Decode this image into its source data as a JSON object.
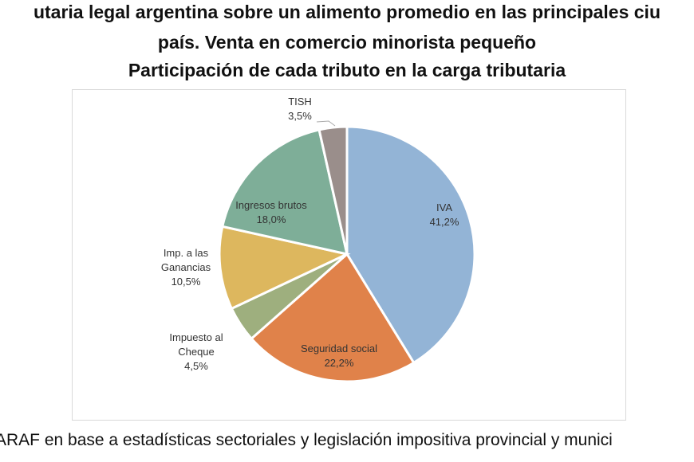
{
  "chart_data": {
    "type": "pie",
    "title": [
      "utaria legal argentina sobre un alimento promedio en las principales ciu",
      "país. Venta en comercio minorista pequeño",
      "Participación de cada tributo en la carga tributaria"
    ],
    "start": "12 o'clock, clockwise",
    "slices": [
      {
        "label": "IVA",
        "value": 41.2,
        "text": "41,2%",
        "color": "#93B4D6"
      },
      {
        "label": "Seguridad social",
        "value": 22.2,
        "text": "22,2%",
        "color": "#E0824A"
      },
      {
        "label": "Impuesto al Cheque",
        "value": 4.5,
        "text": "4,5%",
        "color": "#9EAF7E"
      },
      {
        "label": "Imp. a las Ganancias",
        "value": 10.5,
        "text": "10,5%",
        "color": "#DDB75E"
      },
      {
        "label": "Ingresos brutos",
        "value": 18.0,
        "text": "18,0%",
        "color": "#7EAE98"
      },
      {
        "label": "TISH",
        "value": 3.5,
        "text": "3,5%",
        "color": "#9A8E8B"
      }
    ]
  },
  "source": "ARAF en base a estadísticas  sectoriales y legislación impositiva  provincial y munici"
}
